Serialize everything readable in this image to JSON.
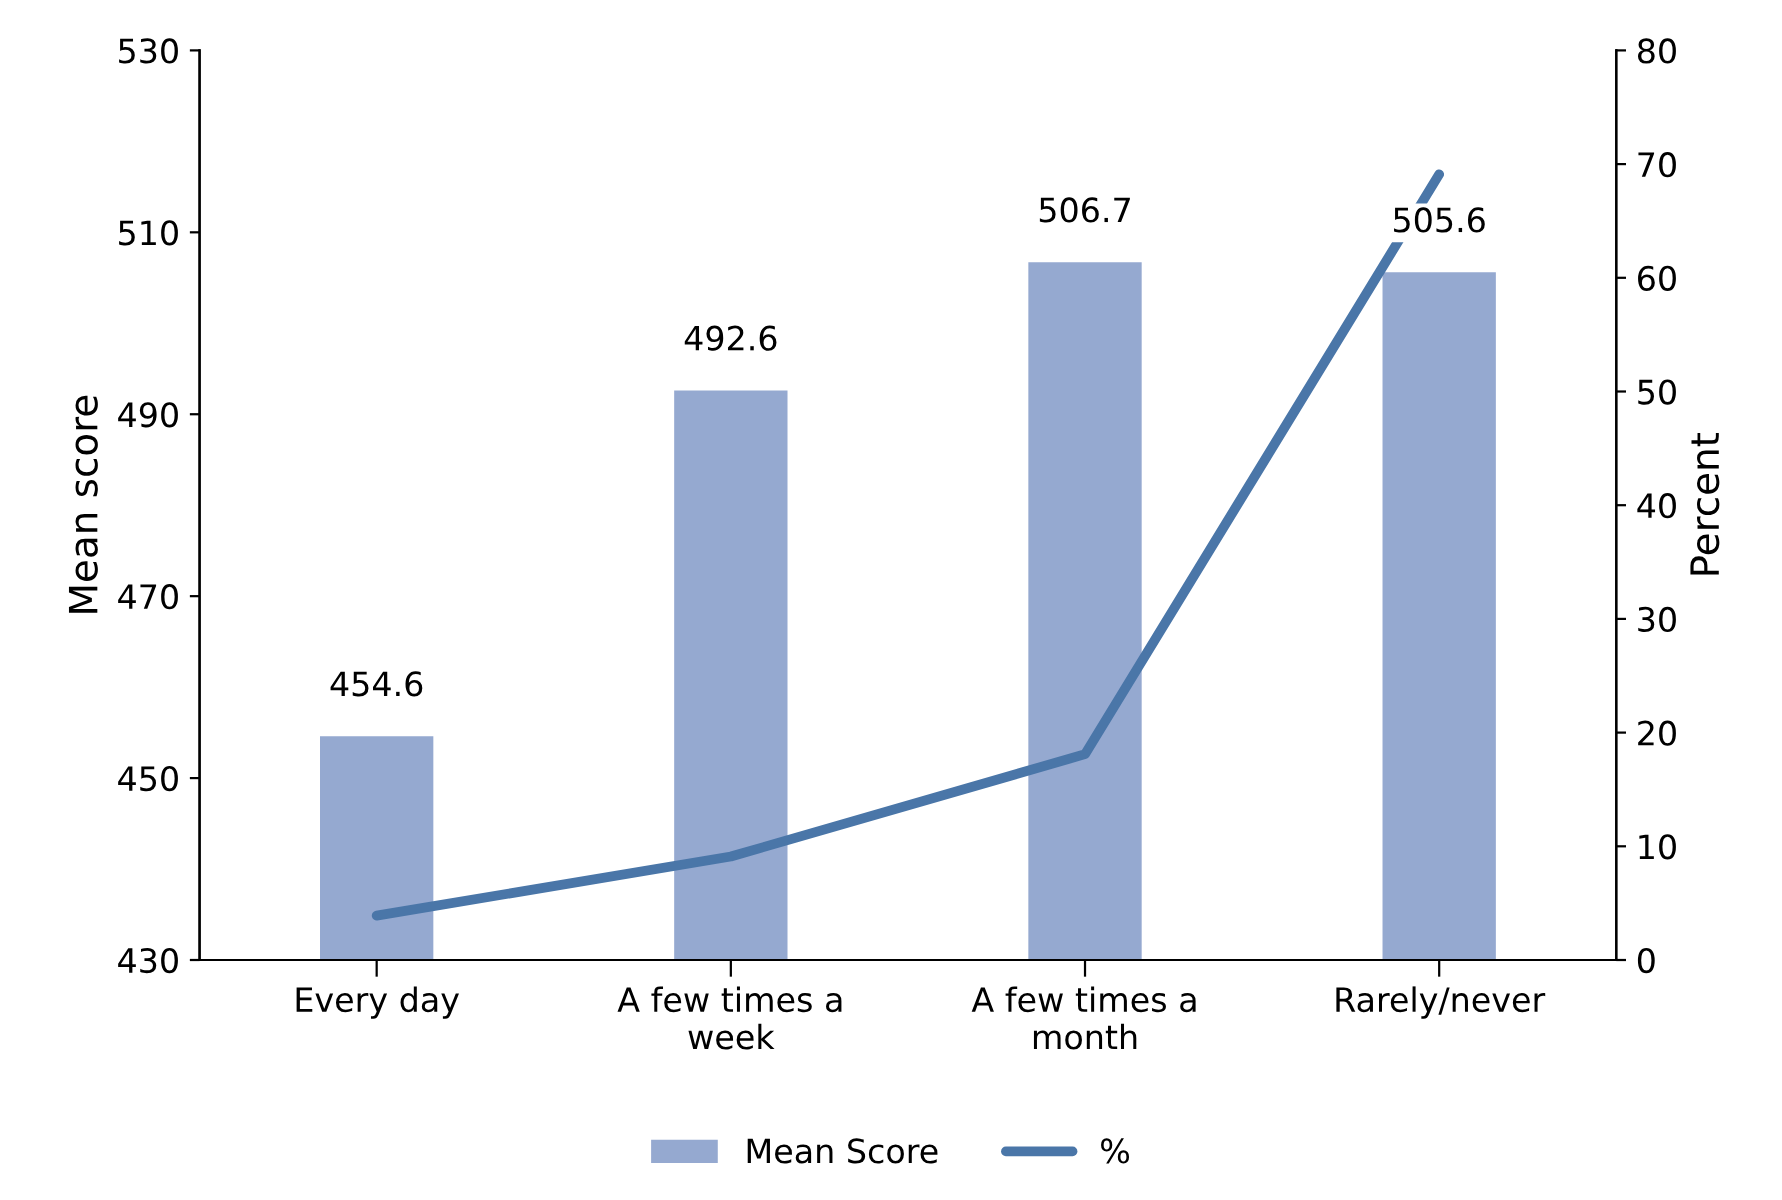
{
  "chart_data": {
    "type": "bar",
    "categories": [
      "Every day",
      "A few times a\nweek",
      "A few times a\nmonth",
      "Rarely/never"
    ],
    "series": [
      {
        "name": "Mean Score",
        "color": "#95a9d0",
        "values": [
          454.6,
          492.6,
          506.7,
          505.6
        ],
        "value_labels": [
          "454.6",
          "492.6",
          "506.7",
          "505.6"
        ]
      },
      {
        "name": "%",
        "type": "line",
        "axis": "y2",
        "color": "#4a76a8",
        "values": [
          3.9,
          9.1,
          18.1,
          69.1
        ]
      }
    ],
    "ylabel": "Mean score",
    "y2label": "Percent",
    "ylim": [
      430,
      530
    ],
    "yticks": [
      430,
      450,
      470,
      490,
      510,
      530
    ],
    "y2lim": [
      0,
      80
    ],
    "y2ticks": [
      0,
      10,
      20,
      30,
      40,
      50,
      60,
      70,
      80
    ],
    "legend": "bottom",
    "grid": false,
    "marker": "none"
  }
}
